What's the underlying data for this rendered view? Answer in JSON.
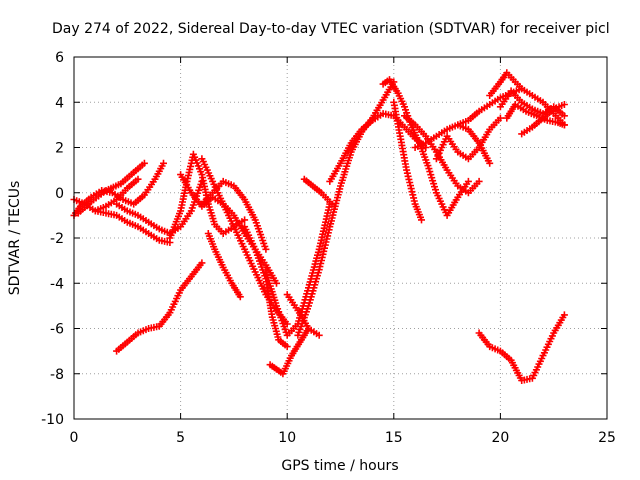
{
  "chart_data": {
    "type": "scatter",
    "title": "Day 274 of 2022, Sidereal Day-to-day VTEC variation (SDTVAR) for receiver picl",
    "xlabel": "GPS time / hours",
    "ylabel": "SDTVAR / TECUs",
    "xlim": [
      0,
      25
    ],
    "ylim": [
      -10,
      6
    ],
    "xticks": [
      "0",
      "5",
      "10",
      "15",
      "20",
      "25"
    ],
    "yticks": [
      "-10",
      "-8",
      "-6",
      "-4",
      "-2",
      "0",
      "2",
      "4",
      "6"
    ],
    "grid": true,
    "legend": "none",
    "marker": "plus",
    "color": "#ff0000",
    "series": [
      {
        "x": [
          0.0,
          0.5,
          1.0,
          1.5,
          2.0,
          2.5,
          3.0
        ],
        "y": [
          -0.3,
          -0.5,
          -0.8,
          -0.6,
          -0.3,
          0.2,
          0.6
        ]
      },
      {
        "x": [
          0.0,
          0.3,
          0.8,
          1.3,
          1.8,
          2.3,
          2.8,
          3.3,
          3.8,
          4.2
        ],
        "y": [
          -1.0,
          -0.6,
          -0.2,
          0.1,
          0.0,
          -0.3,
          -0.5,
          -0.1,
          0.6,
          1.3
        ]
      },
      {
        "x": [
          0.2,
          0.8,
          1.5,
          2.2,
          2.8,
          3.3
        ],
        "y": [
          -0.9,
          -0.4,
          0.1,
          0.4,
          0.9,
          1.3
        ]
      },
      {
        "x": [
          1.0,
          1.5,
          2.0,
          2.5,
          3.0,
          3.5,
          4.0,
          4.5
        ],
        "y": [
          -0.8,
          -0.9,
          -1.0,
          -1.3,
          -1.5,
          -1.8,
          -2.1,
          -2.2
        ]
      },
      {
        "x": [
          2.0,
          2.5,
          3.0,
          3.5,
          4.0,
          4.5,
          5.0,
          5.5,
          6.0
        ],
        "y": [
          -0.5,
          -0.8,
          -1.0,
          -1.3,
          -1.6,
          -1.8,
          -1.5,
          -0.8,
          0.5
        ]
      },
      {
        "x": [
          2.0,
          2.5,
          3.0,
          3.5,
          4.0,
          4.5,
          5.0,
          5.5,
          6.0
        ],
        "y": [
          -7.0,
          -6.6,
          -6.2,
          -6.0,
          -5.9,
          -5.3,
          -4.3,
          -3.7,
          -3.1
        ]
      },
      {
        "x": [
          4.5,
          5.0,
          5.3,
          5.6,
          6.0,
          6.3,
          6.6,
          7.0,
          7.5,
          8.0
        ],
        "y": [
          -2.0,
          -0.8,
          0.5,
          1.7,
          0.8,
          -0.5,
          -1.4,
          -1.8,
          -1.5,
          -1.2
        ]
      },
      {
        "x": [
          5.0,
          5.5,
          6.0,
          6.5,
          7.0,
          7.5,
          8.0,
          8.5,
          9.0,
          9.5
        ],
        "y": [
          0.8,
          0.0,
          -0.6,
          -0.2,
          -0.5,
          -1.0,
          -1.8,
          -2.5,
          -3.2,
          -4.0
        ]
      },
      {
        "x": [
          6.0,
          6.5,
          7.0,
          7.5,
          8.0,
          8.5,
          9.0,
          9.5,
          10.0
        ],
        "y": [
          1.5,
          0.5,
          -0.5,
          -1.5,
          -2.5,
          -3.5,
          -4.5,
          -5.2,
          -5.8
        ]
      },
      {
        "x": [
          6.0,
          6.5,
          7.0,
          7.5,
          8.0,
          8.5,
          9.0
        ],
        "y": [
          -0.5,
          0.0,
          0.5,
          0.3,
          -0.3,
          -1.2,
          -2.5
        ]
      },
      {
        "x": [
          6.3,
          6.6,
          7.0,
          7.4,
          7.8
        ],
        "y": [
          -1.8,
          -2.5,
          -3.3,
          -4.0,
          -4.6
        ]
      },
      {
        "x": [
          8.0,
          8.5,
          9.0,
          9.3,
          9.6,
          10.0
        ],
        "y": [
          -1.5,
          -2.5,
          -3.8,
          -5.5,
          -6.5,
          -6.8
        ]
      },
      {
        "x": [
          9.0,
          9.5,
          10.0,
          10.5,
          11.0,
          11.5,
          12.0
        ],
        "y": [
          -3.5,
          -5.0,
          -6.3,
          -5.8,
          -4.2,
          -2.5,
          -0.5
        ]
      },
      {
        "x": [
          9.2,
          9.5,
          9.8,
          10.2,
          10.6,
          11.0
        ],
        "y": [
          -7.6,
          -7.8,
          -8.0,
          -7.2,
          -6.6,
          -6.0
        ]
      },
      {
        "x": [
          10.0,
          10.5,
          11.0,
          11.5
        ],
        "y": [
          -4.5,
          -5.2,
          -6.0,
          -6.3
        ]
      },
      {
        "x": [
          10.8,
          11.2,
          11.6,
          12.0,
          12.2
        ],
        "y": [
          0.6,
          0.3,
          0.0,
          -0.4,
          -0.6
        ]
      },
      {
        "x": [
          10.5,
          11.0,
          11.5,
          12.0,
          12.5,
          13.0,
          13.5,
          14.0,
          14.5,
          15.0
        ],
        "y": [
          -6.3,
          -5.0,
          -3.4,
          -1.5,
          0.3,
          1.8,
          2.7,
          3.3,
          4.1,
          4.9
        ]
      },
      {
        "x": [
          12.0,
          12.5,
          13.0,
          13.5,
          14.0,
          14.5,
          15.0,
          15.5,
          16.0,
          16.5
        ],
        "y": [
          0.5,
          1.3,
          2.2,
          2.8,
          3.2,
          3.5,
          3.4,
          2.9,
          2.4,
          2.0
        ]
      },
      {
        "x": [
          14.5,
          14.8,
          15.2,
          15.5,
          15.8,
          16.2,
          16.6,
          17.0,
          17.5,
          18.0,
          18.5
        ],
        "y": [
          4.8,
          5.0,
          4.4,
          3.8,
          3.0,
          2.2,
          1.2,
          0.0,
          -1.0,
          -0.2,
          0.5
        ]
      },
      {
        "x": [
          15.0,
          15.3,
          15.6,
          16.0,
          16.3
        ],
        "y": [
          4.0,
          2.5,
          1.0,
          -0.5,
          -1.2
        ]
      },
      {
        "x": [
          15.5,
          16.0,
          16.5,
          17.0,
          17.5,
          18.0,
          18.5,
          19.0
        ],
        "y": [
          3.4,
          3.0,
          2.5,
          1.8,
          1.0,
          0.3,
          0.0,
          0.5
        ]
      },
      {
        "x": [
          16.0,
          16.5,
          17.0,
          17.5,
          18.0,
          18.5,
          19.0,
          19.5
        ],
        "y": [
          2.0,
          2.2,
          2.5,
          2.8,
          3.0,
          2.8,
          2.2,
          1.3
        ]
      },
      {
        "x": [
          17.0,
          17.5,
          18.0,
          18.5,
          19.0,
          19.5,
          20.0
        ],
        "y": [
          1.5,
          2.5,
          1.8,
          1.5,
          2.0,
          2.8,
          3.3
        ]
      },
      {
        "x": [
          18.0,
          18.5,
          19.0,
          19.5,
          20.0,
          20.5,
          21.0
        ],
        "y": [
          3.0,
          3.2,
          3.6,
          3.9,
          4.2,
          4.4,
          4.6
        ]
      },
      {
        "x": [
          19.5,
          20.0,
          20.3,
          20.6,
          21.0,
          21.5,
          22.0,
          22.5,
          23.0
        ],
        "y": [
          4.3,
          4.9,
          5.3,
          5.0,
          4.6,
          4.3,
          4.0,
          3.5,
          3.0
        ]
      },
      {
        "x": [
          20.3,
          20.7,
          21.2,
          21.7,
          22.2,
          22.7,
          23.0
        ],
        "y": [
          3.3,
          3.9,
          3.6,
          3.4,
          3.2,
          3.1,
          3.0
        ]
      },
      {
        "x": [
          20.0,
          20.5,
          21.0,
          21.5,
          22.0,
          22.5,
          23.0
        ],
        "y": [
          3.8,
          4.5,
          4.0,
          3.7,
          3.5,
          3.8,
          3.4
        ]
      },
      {
        "x": [
          21.0,
          21.5,
          22.0,
          22.5,
          23.0
        ],
        "y": [
          2.6,
          2.9,
          3.3,
          3.7,
          3.9
        ]
      },
      {
        "x": [
          19.0,
          19.5,
          20.0,
          20.5,
          21.0,
          21.5,
          22.0,
          22.5,
          23.0
        ],
        "y": [
          -6.2,
          -6.8,
          -7.0,
          -7.4,
          -8.3,
          -8.2,
          -7.2,
          -6.2,
          -5.4
        ]
      }
    ]
  }
}
